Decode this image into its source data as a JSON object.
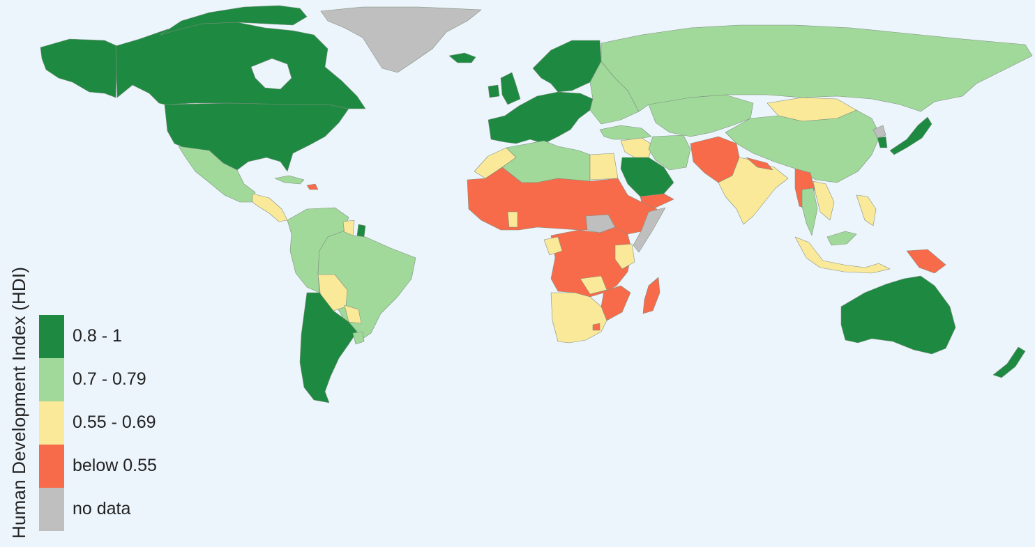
{
  "legend": {
    "title": "Human Development Index (HDI)",
    "items": [
      {
        "label": "0.8 - 1",
        "color": "#1e8a41"
      },
      {
        "label": "0.7 - 0.79",
        "color": "#a0d99a"
      },
      {
        "label": "0.55 - 0.69",
        "color": "#fbe99a"
      },
      {
        "label": "below 0.55",
        "color": "#f76b4a"
      },
      {
        "label": "no data",
        "color": "#bfbfbf"
      }
    ]
  },
  "map": {
    "background": "#edf5fc",
    "regions": [
      {
        "name": "Canada",
        "category": "0.8 - 1"
      },
      {
        "name": "United States",
        "category": "0.8 - 1"
      },
      {
        "name": "Alaska",
        "category": "0.8 - 1"
      },
      {
        "name": "Greenland",
        "category": "no data"
      },
      {
        "name": "Iceland",
        "category": "0.8 - 1"
      },
      {
        "name": "Mexico",
        "category": "0.7 - 0.79"
      },
      {
        "name": "Central America",
        "category": "0.55 - 0.69"
      },
      {
        "name": "Cuba",
        "category": "0.7 - 0.79"
      },
      {
        "name": "Haiti",
        "category": "below 0.55"
      },
      {
        "name": "Colombia / Venezuela / Ecuador / Peru",
        "category": "0.7 - 0.79"
      },
      {
        "name": "Guyana",
        "category": "0.55 - 0.69"
      },
      {
        "name": "French Guiana",
        "category": "0.8 - 1"
      },
      {
        "name": "Brazil",
        "category": "0.7 - 0.79"
      },
      {
        "name": "Bolivia",
        "category": "0.55 - 0.69"
      },
      {
        "name": "Paraguay",
        "category": "0.55 - 0.69"
      },
      {
        "name": "Argentina / Chile",
        "category": "0.8 - 1"
      },
      {
        "name": "Uruguay",
        "category": "0.7 - 0.79"
      },
      {
        "name": "Scandinavia",
        "category": "0.8 - 1"
      },
      {
        "name": "United Kingdom",
        "category": "0.8 - 1"
      },
      {
        "name": "Ireland",
        "category": "0.8 - 1"
      },
      {
        "name": "Western Europe",
        "category": "0.8 - 1"
      },
      {
        "name": "Eastern Europe",
        "category": "0.7 - 0.79"
      },
      {
        "name": "Russia",
        "category": "0.7 - 0.79"
      },
      {
        "name": "Kazakhstan / Central Asia",
        "category": "0.7 - 0.79"
      },
      {
        "name": "Mongolia",
        "category": "0.55 - 0.69"
      },
      {
        "name": "China",
        "category": "0.7 - 0.79"
      },
      {
        "name": "North Korea",
        "category": "no data"
      },
      {
        "name": "South Korea",
        "category": "0.8 - 1"
      },
      {
        "name": "Japan",
        "category": "0.8 - 1"
      },
      {
        "name": "Turkey",
        "category": "0.7 - 0.79"
      },
      {
        "name": "Iran",
        "category": "0.7 - 0.79"
      },
      {
        "name": "Iraq / Syria",
        "category": "0.55 - 0.69"
      },
      {
        "name": "Saudi Arabia",
        "category": "0.8 - 1"
      },
      {
        "name": "Yemen",
        "category": "below 0.55"
      },
      {
        "name": "Afghanistan / Pakistan",
        "category": "below 0.55"
      },
      {
        "name": "India",
        "category": "0.55 - 0.69"
      },
      {
        "name": "Nepal",
        "category": "below 0.55"
      },
      {
        "name": "Myanmar",
        "category": "below 0.55"
      },
      {
        "name": "Thailand",
        "category": "0.7 - 0.79"
      },
      {
        "name": "Indochina",
        "category": "0.55 - 0.69"
      },
      {
        "name": "Malaysia",
        "category": "0.7 - 0.79"
      },
      {
        "name": "Indonesia",
        "category": "0.55 - 0.69"
      },
      {
        "name": "Philippines",
        "category": "0.55 - 0.69"
      },
      {
        "name": "Papua New Guinea",
        "category": "below 0.55"
      },
      {
        "name": "Australia",
        "category": "0.8 - 1"
      },
      {
        "name": "New Zealand",
        "category": "0.8 - 1"
      },
      {
        "name": "Algeria / Libya / Tunisia",
        "category": "0.7 - 0.79"
      },
      {
        "name": "Morocco",
        "category": "0.55 - 0.69"
      },
      {
        "name": "Egypt",
        "category": "0.55 - 0.69"
      },
      {
        "name": "Sahel / West Africa",
        "category": "below 0.55"
      },
      {
        "name": "Ghana",
        "category": "0.55 - 0.69"
      },
      {
        "name": "Sudan / Ethiopia",
        "category": "below 0.55"
      },
      {
        "name": "South Sudan",
        "category": "no data"
      },
      {
        "name": "Somalia",
        "category": "no data"
      },
      {
        "name": "Kenya",
        "category": "0.55 - 0.69"
      },
      {
        "name": "Gabon",
        "category": "0.55 - 0.69"
      },
      {
        "name": "Central Africa",
        "category": "below 0.55"
      },
      {
        "name": "Zambia",
        "category": "0.55 - 0.69"
      },
      {
        "name": "Mozambique / Malawi",
        "category": "below 0.55"
      },
      {
        "name": "Southern Africa",
        "category": "0.55 - 0.69"
      },
      {
        "name": "Lesotho",
        "category": "below 0.55"
      },
      {
        "name": "Madagascar",
        "category": "below 0.55"
      }
    ]
  }
}
